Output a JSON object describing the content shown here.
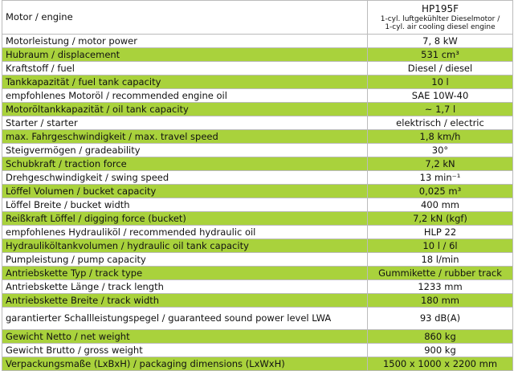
{
  "header": {
    "label": "Motor / engine",
    "model": "HP195F",
    "subtitle_lines": [
      "1-cyl. luftgekühlter Dieselmotor /",
      "1-cyl. air cooling diesel engine"
    ]
  },
  "table": {
    "rows": [
      [
        "Motorleistung / motor power",
        "7, 8 kW"
      ],
      [
        "Hubraum / displacement",
        "531 cm³"
      ],
      [
        "Kraftstoff / fuel",
        "Diesel / diesel"
      ],
      [
        "Tankkapazität / fuel tank capacity",
        "10 l"
      ],
      [
        "empfohlenes Motoröl / recommended engine oil",
        "SAE 10W-40"
      ],
      [
        "Motoröltankkapazität / oil tank capacity",
        "~ 1,7 l"
      ],
      [
        "Starter / starter",
        "elektrisch / electric"
      ],
      [
        "max. Fahrgeschwindigkeit / max. travel speed",
        "1,8 km/h"
      ],
      [
        "Steigvermögen / gradeability",
        "30°"
      ],
      [
        "Schubkraft / traction force",
        "7,2 kN"
      ],
      [
        "Drehgeschwindigkeit / swing speed",
        "13 min⁻¹"
      ],
      [
        "Löffel Volumen / bucket capacity",
        "0,025 m³"
      ],
      [
        "Löffel Breite / bucket width",
        "400 mm"
      ],
      [
        "Reißkraft Löffel / digging force (bucket)",
        "7,2 kN (kgf)"
      ],
      [
        "empfohlenes Hydrauliköl / recommended hydraulic oil",
        "HLP 22"
      ],
      [
        "Hydrauliköltankvolumen / hydraulic oil tank capacity",
        "10 l / 6l"
      ],
      [
        "Pumpleistung / pump capacity",
        "18 l/min"
      ],
      [
        "Antriebskette Typ / track type",
        "Gummikette / rubber track"
      ],
      [
        "Antriebskette Länge / track length",
        "1233 mm"
      ],
      [
        "Antriebskette Breite / track width",
        "180 mm"
      ],
      [
        "garantierter Schallleistungspegel / guaranteed sound power level LWA",
        "93 dB(A)"
      ],
      [
        "Gewicht Netto / net weight",
        "860 kg"
      ],
      [
        "Gewicht Brutto / gross weight",
        "900 kg"
      ],
      [
        "Verpackungsmaße (LxBxH) / packaging dimensions (LxWxH)",
        "1500 x 1000 x 2200 mm"
      ]
    ]
  }
}
